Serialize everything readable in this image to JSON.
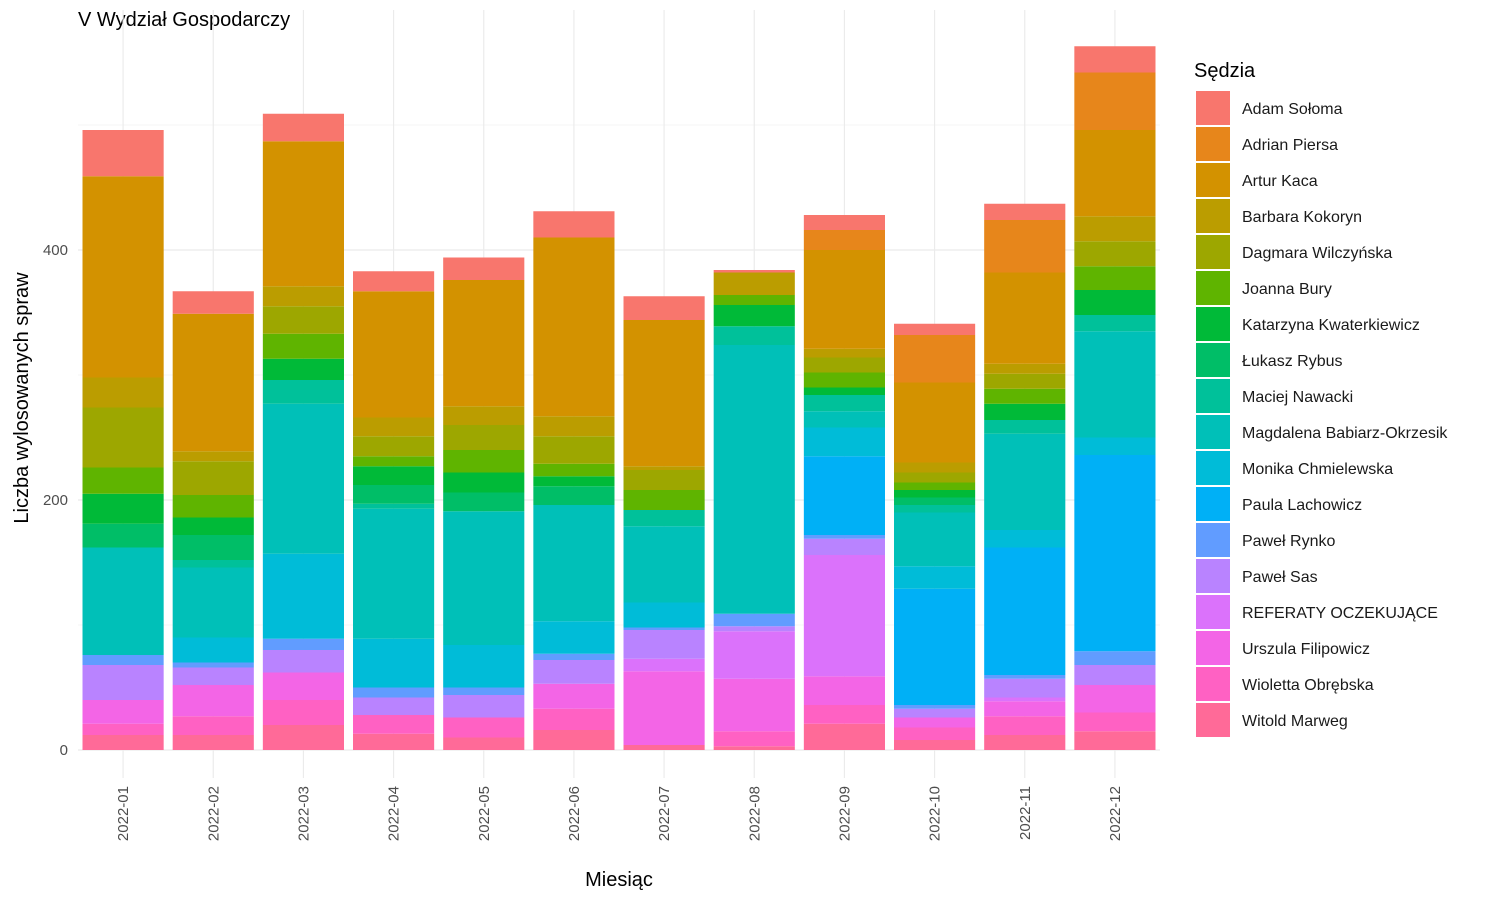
{
  "chart_data": {
    "type": "bar",
    "stacked": true,
    "title": "V Wydział Gospodarczy",
    "xlabel": "Miesiąc",
    "ylabel": "Liczba wylosowanych spraw",
    "legend_title": "Sędzia",
    "legend_position": "right",
    "grid": true,
    "ylim": [
      0,
      570
    ],
    "yticks": [
      0,
      200,
      400
    ],
    "categories": [
      "2022-01",
      "2022-02",
      "2022-03",
      "2022-04",
      "2022-05",
      "2022-06",
      "2022-07",
      "2022-08",
      "2022-09",
      "2022-10",
      "2022-11",
      "2022-12"
    ],
    "series": [
      {
        "name": "Adam Sołoma",
        "color": "#F8766D",
        "values": [
          37,
          18,
          22,
          16,
          18,
          21,
          19,
          2,
          12,
          9,
          13,
          21
        ]
      },
      {
        "name": "Adrian Piersa",
        "color": "#E7861B",
        "values": [
          0,
          0,
          0,
          0,
          0,
          0,
          0,
          0,
          16,
          38,
          42,
          46
        ]
      },
      {
        "name": "Artur Kaca",
        "color": "#D39200",
        "values": [
          161,
          110,
          116,
          101,
          101,
          143,
          117,
          0,
          79,
          64,
          73,
          69
        ]
      },
      {
        "name": "Barbara Kokoryn",
        "color": "#BB9D00",
        "values": [
          24,
          8,
          16,
          15,
          15,
          16,
          3,
          18,
          7,
          8,
          8,
          20
        ]
      },
      {
        "name": "Dagmara Wilczyńska",
        "color": "#9DA700",
        "values": [
          48,
          27,
          22,
          16,
          20,
          22,
          16,
          0,
          12,
          8,
          12,
          20
        ]
      },
      {
        "name": "Joanna Bury",
        "color": "#5FB400",
        "values": [
          21,
          18,
          20,
          8,
          18,
          10,
          16,
          8,
          12,
          6,
          12,
          19
        ]
      },
      {
        "name": "Katarzyna Kwaterkiewicz",
        "color": "#00BA38",
        "values": [
          24,
          14,
          17,
          15,
          16,
          8,
          0,
          17,
          6,
          6,
          13,
          20
        ]
      },
      {
        "name": "Łukasz Rybus",
        "color": "#00BE67",
        "values": [
          19,
          20,
          0,
          15,
          15,
          15,
          0,
          0,
          0,
          6,
          0,
          0
        ]
      },
      {
        "name": "Maciej Nawacki",
        "color": "#00C19A",
        "values": [
          0,
          6,
          19,
          4,
          0,
          0,
          13,
          15,
          13,
          6,
          11,
          13
        ]
      },
      {
        "name": "Magdalena Babiarz-Okrzesik",
        "color": "#00C0B8",
        "values": [
          86,
          56,
          120,
          104,
          107,
          93,
          61,
          215,
          13,
          43,
          77,
          85
        ]
      },
      {
        "name": "Monika Chmielewska",
        "color": "#00BCD8",
        "values": [
          0,
          20,
          68,
          39,
          34,
          26,
          20,
          0,
          23,
          18,
          14,
          14
        ]
      },
      {
        "name": "Paula Lachowicz",
        "color": "#00B0F6",
        "values": [
          0,
          0,
          0,
          0,
          0,
          0,
          0,
          0,
          63,
          93,
          102,
          157
        ]
      },
      {
        "name": "Paweł Rynko",
        "color": "#619CFF",
        "values": [
          8,
          4,
          9,
          8,
          6,
          5,
          2,
          10,
          3,
          3,
          3,
          11
        ]
      },
      {
        "name": "Paweł Sas",
        "color": "#B983FF",
        "values": [
          28,
          14,
          18,
          14,
          18,
          19,
          23,
          4,
          13,
          7,
          15,
          16
        ]
      },
      {
        "name": "REFERATY OCZEKUJĄCE",
        "color": "#DB72FB",
        "values": [
          0,
          0,
          0,
          0,
          0,
          0,
          10,
          38,
          97,
          0,
          3,
          0
        ]
      },
      {
        "name": "Urszula Filipowicz",
        "color": "#F365E6",
        "values": [
          19,
          25,
          22,
          0,
          0,
          20,
          59,
          42,
          23,
          8,
          12,
          22
        ]
      },
      {
        "name": "Wioletta Obrębska",
        "color": "#FF61C3",
        "values": [
          9,
          15,
          20,
          15,
          16,
          17,
          0,
          12,
          15,
          10,
          15,
          15
        ]
      },
      {
        "name": "Witold Marweg",
        "color": "#FF6A98",
        "values": [
          12,
          12,
          20,
          13,
          10,
          16,
          4,
          3,
          21,
          8,
          12,
          15
        ]
      }
    ]
  }
}
